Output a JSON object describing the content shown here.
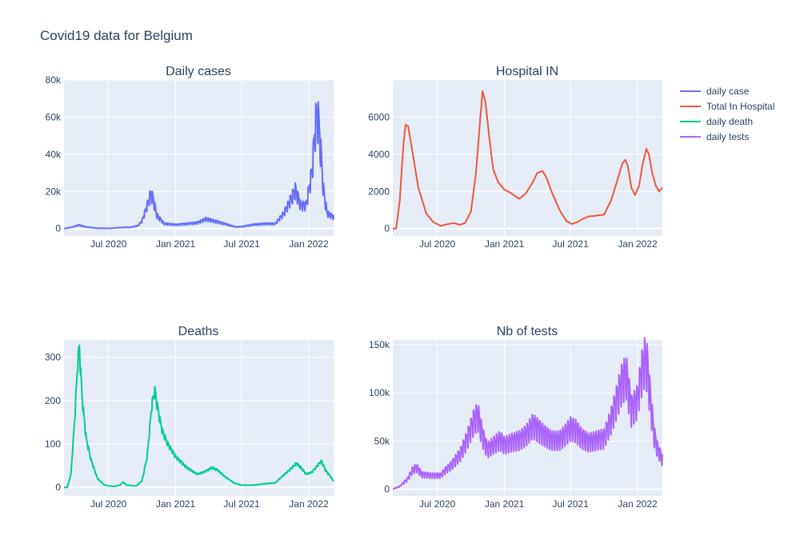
{
  "figure": {
    "title": "Covid19 data for Belgium",
    "background": "#ffffff",
    "plot_background": "#e5ecf6",
    "grid_color": "#ffffff"
  },
  "legend": {
    "placement": "top-right",
    "items": [
      {
        "label": "daily case",
        "color": "#636efa"
      },
      {
        "label": "Total In Hospital",
        "color": "#ef553b"
      },
      {
        "label": "daily death",
        "color": "#00cc96"
      },
      {
        "label": "daily tests",
        "color": "#ab63fa"
      }
    ]
  },
  "chart_data": [
    {
      "type": "line",
      "title": "Daily cases",
      "xlabel": "",
      "ylabel": "",
      "xlim": [
        "2020-03-01",
        "2022-03-10"
      ],
      "ylim": [
        -4000,
        80000
      ],
      "xticks": [
        {
          "date": "2020-07-01",
          "label": "Jul 2020"
        },
        {
          "date": "2021-01-01",
          "label": "Jan 2021"
        },
        {
          "date": "2021-07-01",
          "label": "Jul 2021"
        },
        {
          "date": "2022-01-01",
          "label": "Jan 2022"
        }
      ],
      "yticks": [
        {
          "value": 0,
          "label": "0"
        },
        {
          "value": 20000,
          "label": "20k"
        },
        {
          "value": 40000,
          "label": "40k"
        },
        {
          "value": 60000,
          "label": "60k"
        },
        {
          "value": 80000,
          "label": "80k"
        }
      ],
      "grid": true,
      "series": [
        {
          "name": "daily case",
          "color": "#636efa",
          "weekly_oscillation": 0.45,
          "points": [
            [
              "2020-03-01",
              0
            ],
            [
              "2020-03-15",
              400
            ],
            [
              "2020-04-01",
              1200
            ],
            [
              "2020-04-10",
              1800
            ],
            [
              "2020-05-01",
              800
            ],
            [
              "2020-06-01",
              200
            ],
            [
              "2020-07-01",
              100
            ],
            [
              "2020-08-01",
              500
            ],
            [
              "2020-09-01",
              700
            ],
            [
              "2020-09-20",
              1500
            ],
            [
              "2020-10-01",
              4000
            ],
            [
              "2020-10-15",
              12000
            ],
            [
              "2020-10-25",
              18000
            ],
            [
              "2020-11-01",
              15000
            ],
            [
              "2020-11-10",
              7000
            ],
            [
              "2020-12-01",
              2500
            ],
            [
              "2021-01-01",
              2000
            ],
            [
              "2021-02-01",
              2500
            ],
            [
              "2021-03-01",
              3000
            ],
            [
              "2021-03-25",
              5000
            ],
            [
              "2021-04-15",
              4000
            ],
            [
              "2021-05-15",
              2500
            ],
            [
              "2021-06-15",
              800
            ],
            [
              "2021-07-01",
              1000
            ],
            [
              "2021-08-01",
              2000
            ],
            [
              "2021-09-01",
              2500
            ],
            [
              "2021-10-01",
              2500
            ],
            [
              "2021-10-25",
              8000
            ],
            [
              "2021-11-15",
              16000
            ],
            [
              "2021-11-25",
              20000
            ],
            [
              "2021-12-10",
              12000
            ],
            [
              "2021-12-25",
              12000
            ],
            [
              "2022-01-10",
              30000
            ],
            [
              "2022-01-20",
              55000
            ],
            [
              "2022-01-25",
              60000
            ],
            [
              "2022-02-01",
              45000
            ],
            [
              "2022-02-10",
              20000
            ],
            [
              "2022-02-20",
              8000
            ],
            [
              "2022-03-01",
              7000
            ],
            [
              "2022-03-10",
              6000
            ]
          ]
        }
      ]
    },
    {
      "type": "line",
      "title": "Hospital IN",
      "xlabel": "",
      "ylabel": "",
      "xlim": [
        "2020-03-01",
        "2022-03-10"
      ],
      "ylim": [
        -400,
        8000
      ],
      "xticks": [
        {
          "date": "2020-07-01",
          "label": "Jul 2020"
        },
        {
          "date": "2021-01-01",
          "label": "Jan 2021"
        },
        {
          "date": "2021-07-01",
          "label": "Jul 2021"
        },
        {
          "date": "2022-01-01",
          "label": "Jan 2022"
        }
      ],
      "yticks": [
        {
          "value": 0,
          "label": "0"
        },
        {
          "value": 2000,
          "label": "2000"
        },
        {
          "value": 4000,
          "label": "4000"
        },
        {
          "value": 6000,
          "label": "6000"
        }
      ],
      "grid": true,
      "series": [
        {
          "name": "Total In Hospital",
          "color": "#ef553b",
          "weekly_oscillation": 0,
          "points": [
            [
              "2020-03-01",
              0
            ],
            [
              "2020-03-10",
              0
            ],
            [
              "2020-03-20",
              1500
            ],
            [
              "2020-03-30",
              4500
            ],
            [
              "2020-04-05",
              5600
            ],
            [
              "2020-04-12",
              5500
            ],
            [
              "2020-04-25",
              4000
            ],
            [
              "2020-05-10",
              2200
            ],
            [
              "2020-06-01",
              800
            ],
            [
              "2020-06-20",
              350
            ],
            [
              "2020-07-10",
              150
            ],
            [
              "2020-08-01",
              250
            ],
            [
              "2020-08-15",
              300
            ],
            [
              "2020-09-01",
              200
            ],
            [
              "2020-09-15",
              300
            ],
            [
              "2020-10-01",
              900
            ],
            [
              "2020-10-15",
              3000
            ],
            [
              "2020-10-25",
              5500
            ],
            [
              "2020-11-02",
              7400
            ],
            [
              "2020-11-10",
              6800
            ],
            [
              "2020-11-20",
              5000
            ],
            [
              "2020-12-01",
              3200
            ],
            [
              "2020-12-15",
              2500
            ],
            [
              "2021-01-01",
              2100
            ],
            [
              "2021-01-20",
              1900
            ],
            [
              "2021-02-10",
              1600
            ],
            [
              "2021-03-01",
              1900
            ],
            [
              "2021-03-20",
              2500
            ],
            [
              "2021-04-01",
              3000
            ],
            [
              "2021-04-15",
              3100
            ],
            [
              "2021-04-25",
              2800
            ],
            [
              "2021-05-10",
              2000
            ],
            [
              "2021-06-01",
              1000
            ],
            [
              "2021-06-20",
              400
            ],
            [
              "2021-07-05",
              250
            ],
            [
              "2021-07-20",
              350
            ],
            [
              "2021-08-01",
              500
            ],
            [
              "2021-08-20",
              650
            ],
            [
              "2021-09-10",
              700
            ],
            [
              "2021-10-01",
              750
            ],
            [
              "2021-10-20",
              1500
            ],
            [
              "2021-11-05",
              2500
            ],
            [
              "2021-11-20",
              3500
            ],
            [
              "2021-11-28",
              3700
            ],
            [
              "2021-12-05",
              3400
            ],
            [
              "2021-12-15",
              2200
            ],
            [
              "2021-12-25",
              1800
            ],
            [
              "2022-01-05",
              2300
            ],
            [
              "2022-01-15",
              3500
            ],
            [
              "2022-01-25",
              4300
            ],
            [
              "2022-02-01",
              4000
            ],
            [
              "2022-02-10",
              3000
            ],
            [
              "2022-02-20",
              2300
            ],
            [
              "2022-03-01",
              2000
            ],
            [
              "2022-03-10",
              2200
            ]
          ]
        }
      ]
    },
    {
      "type": "line",
      "title": "Deaths",
      "xlabel": "",
      "ylabel": "",
      "xlim": [
        "2020-03-01",
        "2022-03-10"
      ],
      "ylim": [
        -20,
        340
      ],
      "xticks": [
        {
          "date": "2020-07-01",
          "label": "Jul 2020"
        },
        {
          "date": "2021-01-01",
          "label": "Jan 2021"
        },
        {
          "date": "2021-07-01",
          "label": "Jul 2021"
        },
        {
          "date": "2022-01-01",
          "label": "Jan 2022"
        }
      ],
      "yticks": [
        {
          "value": 0,
          "label": "0"
        },
        {
          "value": 100,
          "label": "100"
        },
        {
          "value": 200,
          "label": "200"
        },
        {
          "value": 300,
          "label": "300"
        }
      ],
      "grid": true,
      "series": [
        {
          "name": "daily death",
          "color": "#00cc96",
          "weekly_oscillation": 0.12,
          "points": [
            [
              "2020-03-01",
              0
            ],
            [
              "2020-03-10",
              0
            ],
            [
              "2020-03-20",
              30
            ],
            [
              "2020-03-30",
              150
            ],
            [
              "2020-04-08",
              290
            ],
            [
              "2020-04-12",
              320
            ],
            [
              "2020-04-20",
              200
            ],
            [
              "2020-05-01",
              110
            ],
            [
              "2020-05-15",
              60
            ],
            [
              "2020-06-01",
              20
            ],
            [
              "2020-06-20",
              5
            ],
            [
              "2020-07-15",
              2
            ],
            [
              "2020-08-01",
              5
            ],
            [
              "2020-08-10",
              12
            ],
            [
              "2020-08-20",
              5
            ],
            [
              "2020-09-15",
              3
            ],
            [
              "2020-10-01",
              15
            ],
            [
              "2020-10-15",
              70
            ],
            [
              "2020-10-28",
              190
            ],
            [
              "2020-11-05",
              220
            ],
            [
              "2020-11-15",
              170
            ],
            [
              "2020-11-25",
              130
            ],
            [
              "2020-12-10",
              100
            ],
            [
              "2021-01-01",
              70
            ],
            [
              "2021-02-01",
              45
            ],
            [
              "2021-03-01",
              30
            ],
            [
              "2021-03-20",
              35
            ],
            [
              "2021-04-10",
              45
            ],
            [
              "2021-04-25",
              40
            ],
            [
              "2021-05-15",
              25
            ],
            [
              "2021-06-10",
              10
            ],
            [
              "2021-07-01",
              5
            ],
            [
              "2021-08-01",
              5
            ],
            [
              "2021-09-01",
              8
            ],
            [
              "2021-10-01",
              10
            ],
            [
              "2021-10-20",
              25
            ],
            [
              "2021-11-10",
              40
            ],
            [
              "2021-11-28",
              55
            ],
            [
              "2021-12-10",
              45
            ],
            [
              "2021-12-25",
              30
            ],
            [
              "2022-01-10",
              35
            ],
            [
              "2022-01-25",
              50
            ],
            [
              "2022-02-05",
              60
            ],
            [
              "2022-02-15",
              40
            ],
            [
              "2022-03-01",
              25
            ],
            [
              "2022-03-10",
              15
            ]
          ]
        }
      ]
    },
    {
      "type": "line",
      "title": "Nb of tests",
      "xlabel": "",
      "ylabel": "",
      "xlim": [
        "2020-03-01",
        "2022-03-10"
      ],
      "ylim": [
        -7000,
        155000
      ],
      "xticks": [
        {
          "date": "2020-07-01",
          "label": "Jul 2020"
        },
        {
          "date": "2021-01-01",
          "label": "Jan 2021"
        },
        {
          "date": "2021-07-01",
          "label": "Jul 2021"
        },
        {
          "date": "2022-01-01",
          "label": "Jan 2022"
        }
      ],
      "yticks": [
        {
          "value": 0,
          "label": "0"
        },
        {
          "value": 50000,
          "label": "50k"
        },
        {
          "value": 100000,
          "label": "100k"
        },
        {
          "value": 150000,
          "label": "150k"
        }
      ],
      "grid": true,
      "series": [
        {
          "name": "daily tests",
          "color": "#ab63fa",
          "weekly_oscillation": 0.42,
          "points": [
            [
              "2020-03-01",
              0
            ],
            [
              "2020-03-20",
              3000
            ],
            [
              "2020-04-10",
              10000
            ],
            [
              "2020-04-25",
              20000
            ],
            [
              "2020-05-05",
              22000
            ],
            [
              "2020-05-20",
              15000
            ],
            [
              "2020-06-15",
              14000
            ],
            [
              "2020-07-10",
              14000
            ],
            [
              "2020-07-25",
              20000
            ],
            [
              "2020-08-10",
              25000
            ],
            [
              "2020-09-01",
              35000
            ],
            [
              "2020-09-20",
              50000
            ],
            [
              "2020-10-10",
              70000
            ],
            [
              "2020-10-20",
              75000
            ],
            [
              "2020-11-01",
              55000
            ],
            [
              "2020-11-15",
              40000
            ],
            [
              "2020-12-01",
              45000
            ],
            [
              "2020-12-20",
              50000
            ],
            [
              "2021-01-01",
              45000
            ],
            [
              "2021-01-20",
              48000
            ],
            [
              "2021-02-10",
              50000
            ],
            [
              "2021-03-01",
              55000
            ],
            [
              "2021-03-20",
              65000
            ],
            [
              "2021-04-05",
              60000
            ],
            [
              "2021-04-20",
              55000
            ],
            [
              "2021-05-10",
              50000
            ],
            [
              "2021-06-01",
              50000
            ],
            [
              "2021-06-15",
              55000
            ],
            [
              "2021-07-01",
              62000
            ],
            [
              "2021-07-15",
              60000
            ],
            [
              "2021-08-01",
              52000
            ],
            [
              "2021-08-20",
              48000
            ],
            [
              "2021-09-10",
              50000
            ],
            [
              "2021-10-01",
              52000
            ],
            [
              "2021-10-20",
              70000
            ],
            [
              "2021-11-05",
              90000
            ],
            [
              "2021-11-20",
              110000
            ],
            [
              "2021-12-01",
              115000
            ],
            [
              "2021-12-15",
              80000
            ],
            [
              "2022-01-01",
              90000
            ],
            [
              "2022-01-10",
              115000
            ],
            [
              "2022-01-20",
              130000
            ],
            [
              "2022-01-27",
              125000
            ],
            [
              "2022-02-05",
              90000
            ],
            [
              "2022-02-15",
              55000
            ],
            [
              "2022-02-25",
              40000
            ],
            [
              "2022-03-10",
              30000
            ]
          ]
        }
      ]
    }
  ]
}
